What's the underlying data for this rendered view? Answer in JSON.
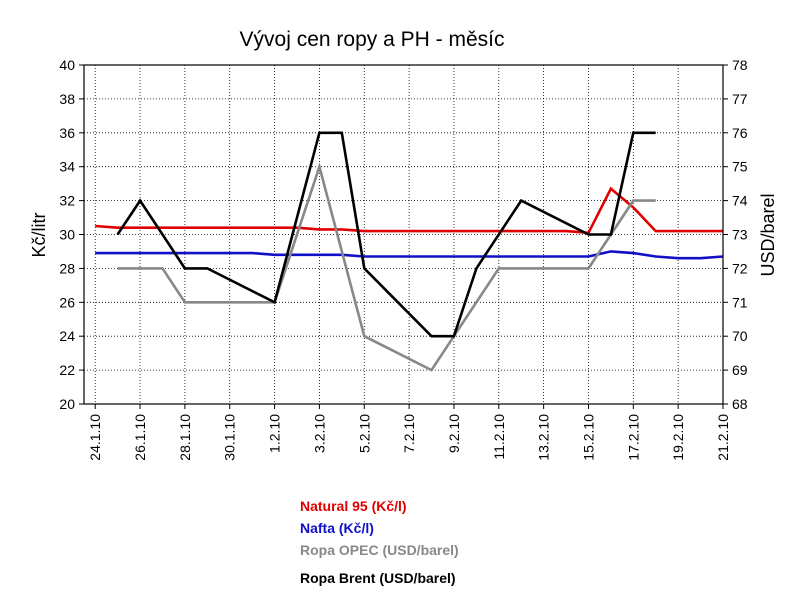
{
  "chart_data": {
    "type": "line",
    "title": "Vývoj cen ropy a PH - měsíc",
    "ylabel_left": "Kč/litr",
    "ylabel_right": "USD/barel",
    "ylim_left": [
      20,
      40
    ],
    "ylim_right": [
      68,
      78
    ],
    "yticks_left": [
      "20",
      "22",
      "24",
      "26",
      "28",
      "30",
      "32",
      "34",
      "36",
      "38",
      "40"
    ],
    "yticks_right": [
      "68",
      "69",
      "70",
      "71",
      "72",
      "73",
      "74",
      "75",
      "76",
      "77",
      "78"
    ],
    "grid": true,
    "categories": [
      "24.1.10",
      "25.1.10",
      "26.1.10",
      "27.1.10",
      "28.1.10",
      "29.1.10",
      "30.1.10",
      "31.1.10",
      "1.2.10",
      "2.2.10",
      "3.2.10",
      "4.2.10",
      "5.2.10",
      "6.2.10",
      "7.2.10",
      "8.2.10",
      "9.2.10",
      "10.2.10",
      "11.2.10",
      "12.2.10",
      "13.2.10",
      "14.2.10",
      "15.2.10",
      "16.2.10",
      "17.2.10",
      "18.2.10",
      "19.2.10",
      "20.2.10",
      "21.2.10"
    ],
    "xtick_labels": [
      "24.1.10",
      "26.1.10",
      "28.1.10",
      "30.1.10",
      "1.2.10",
      "3.2.10",
      "5.2.10",
      "7.2.10",
      "9.2.10",
      "11.2.10",
      "13.2.10",
      "15.2.10",
      "17.2.10",
      "19.2.10",
      "21.2.10"
    ],
    "series": [
      {
        "name": "Natural 95 (Kč/l)",
        "axis": "left",
        "color": "#e00000",
        "points": [
          [
            "24.1.10",
            30.5
          ],
          [
            "25.1.10",
            30.4
          ],
          [
            "26.1.10",
            30.4
          ],
          [
            "27.1.10",
            30.4
          ],
          [
            "28.1.10",
            30.4
          ],
          [
            "29.1.10",
            30.4
          ],
          [
            "30.1.10",
            30.4
          ],
          [
            "31.1.10",
            30.4
          ],
          [
            "1.2.10",
            30.4
          ],
          [
            "2.2.10",
            30.4
          ],
          [
            "3.2.10",
            30.3
          ],
          [
            "4.2.10",
            30.3
          ],
          [
            "5.2.10",
            30.2
          ],
          [
            "6.2.10",
            30.2
          ],
          [
            "7.2.10",
            30.2
          ],
          [
            "8.2.10",
            30.2
          ],
          [
            "9.2.10",
            30.2
          ],
          [
            "10.2.10",
            30.2
          ],
          [
            "11.2.10",
            30.2
          ],
          [
            "12.2.10",
            30.2
          ],
          [
            "13.2.10",
            30.2
          ],
          [
            "14.2.10",
            30.2
          ],
          [
            "15.2.10",
            30.1
          ],
          [
            "16.2.10",
            32.7
          ],
          [
            "17.2.10",
            31.6
          ],
          [
            "18.2.10",
            30.2
          ],
          [
            "19.2.10",
            30.2
          ],
          [
            "20.2.10",
            30.2
          ],
          [
            "21.2.10",
            30.2
          ]
        ]
      },
      {
        "name": "Nafta (Kč/l)",
        "axis": "left",
        "color": "#1010c8",
        "points": [
          [
            "24.1.10",
            28.9
          ],
          [
            "25.1.10",
            28.9
          ],
          [
            "26.1.10",
            28.9
          ],
          [
            "27.1.10",
            28.9
          ],
          [
            "28.1.10",
            28.9
          ],
          [
            "29.1.10",
            28.9
          ],
          [
            "30.1.10",
            28.9
          ],
          [
            "31.1.10",
            28.9
          ],
          [
            "1.2.10",
            28.8
          ],
          [
            "2.2.10",
            28.8
          ],
          [
            "3.2.10",
            28.8
          ],
          [
            "4.2.10",
            28.8
          ],
          [
            "5.2.10",
            28.7
          ],
          [
            "6.2.10",
            28.7
          ],
          [
            "7.2.10",
            28.7
          ],
          [
            "8.2.10",
            28.7
          ],
          [
            "9.2.10",
            28.7
          ],
          [
            "10.2.10",
            28.7
          ],
          [
            "11.2.10",
            28.7
          ],
          [
            "12.2.10",
            28.7
          ],
          [
            "13.2.10",
            28.7
          ],
          [
            "14.2.10",
            28.7
          ],
          [
            "15.2.10",
            28.7
          ],
          [
            "16.2.10",
            29.0
          ],
          [
            "17.2.10",
            28.9
          ],
          [
            "18.2.10",
            28.7
          ],
          [
            "19.2.10",
            28.6
          ],
          [
            "20.2.10",
            28.6
          ],
          [
            "21.2.10",
            28.7
          ]
        ]
      },
      {
        "name": "Ropa OPEC (USD/barel)",
        "axis": "right",
        "color": "#888888",
        "points": [
          [
            "25.1.10",
            72
          ],
          [
            "26.1.10",
            72
          ],
          [
            "27.1.10",
            72
          ],
          [
            "28.1.10",
            71
          ],
          [
            "29.1.10",
            71
          ],
          [
            "30.1.10",
            71
          ],
          [
            "31.1.10",
            71
          ],
          [
            "1.2.10",
            71
          ],
          [
            "3.2.10",
            75
          ],
          [
            "5.2.10",
            70
          ],
          [
            "8.2.10",
            69
          ],
          [
            "9.2.10",
            70
          ],
          [
            "11.2.10",
            72
          ],
          [
            "12.2.10",
            72
          ],
          [
            "13.2.10",
            72
          ],
          [
            "14.2.10",
            72
          ],
          [
            "15.2.10",
            72
          ],
          [
            "16.2.10",
            73
          ],
          [
            "17.2.10",
            74
          ],
          [
            "18.2.10",
            74
          ]
        ]
      },
      {
        "name": "Ropa Brent (USD/barel)",
        "axis": "right",
        "color": "#000000",
        "points": [
          [
            "25.1.10",
            73
          ],
          [
            "26.1.10",
            74
          ],
          [
            "28.1.10",
            72
          ],
          [
            "29.1.10",
            72
          ],
          [
            "1.2.10",
            71
          ],
          [
            "3.2.10",
            76
          ],
          [
            "4.2.10",
            76
          ],
          [
            "5.2.10",
            72
          ],
          [
            "8.2.10",
            70
          ],
          [
            "9.2.10",
            70
          ],
          [
            "10.2.10",
            72
          ],
          [
            "12.2.10",
            74
          ],
          [
            "15.2.10",
            73
          ],
          [
            "16.2.10",
            73
          ],
          [
            "17.2.10",
            76
          ],
          [
            "18.2.10",
            76
          ]
        ]
      }
    ],
    "legend_position": "bottom"
  }
}
